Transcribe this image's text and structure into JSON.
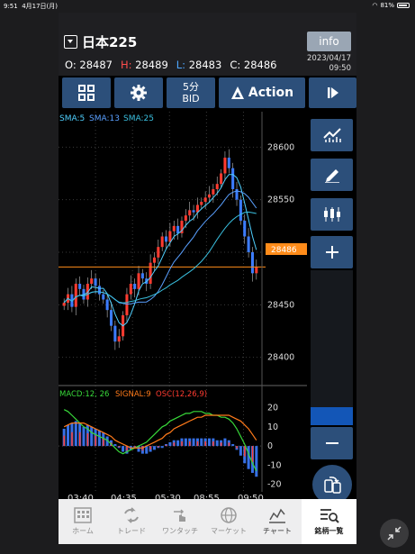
{
  "status": {
    "time": "9:51",
    "date": "4月17日(月)",
    "battery": "81%"
  },
  "header": {
    "symbol": "日本225",
    "info_label": "info",
    "ohlc": {
      "o_label": "O:",
      "o": "28487",
      "h_label": "H:",
      "h": "28489",
      "l_label": "L:",
      "l": "28483",
      "c_label": "C:",
      "c": "28486"
    },
    "date": "2023/04/17",
    "time": "09:50"
  },
  "toolbar": {
    "bid_top": "5分",
    "bid_bottom": "BID",
    "action_label": "Action"
  },
  "chart": {
    "ma_legend": {
      "sma5": "SMA:5",
      "sma13": "SMA:13",
      "sma25": "SMA:25"
    },
    "y_ticks": [
      "28600",
      "28550",
      "28500",
      "28450",
      "28400"
    ],
    "current_price": "28486",
    "macd_legend": {
      "macd": "MACD:12, 26",
      "signal": "SIGNAL:9",
      "osc": "OSC(12,26,9)"
    },
    "macd_ticks": [
      "20",
      "10",
      "0",
      "-10",
      "-20"
    ],
    "x_ticks": [
      "03:40",
      "04:35",
      "05:30",
      "08:55",
      "09:50"
    ]
  },
  "colors": {
    "up": "#ff3b30",
    "down": "#3c7cff",
    "sma5": "#4fd0ff",
    "sma13": "#5aa0ff",
    "sma25": "#3ac0e0",
    "macd": "#38d93a",
    "signal": "#ff7a1a",
    "price_line": "#ff8c1a",
    "accent": "#2c4f7a"
  },
  "chart_data": {
    "type": "candlestick",
    "price_axis": {
      "ylim": [
        28380,
        28620
      ],
      "ticks": [
        28600,
        28550,
        28500,
        28450,
        28400
      ]
    },
    "macd_axis": {
      "ylim": [
        -22,
        24
      ],
      "ticks": [
        20,
        10,
        0,
        -10,
        -20
      ]
    },
    "current": 28486,
    "close_series": [
      28452,
      28460,
      28448,
      28470,
      28465,
      28455,
      28470,
      28475,
      28468,
      28460,
      28455,
      28445,
      28430,
      28415,
      28420,
      28440,
      28460,
      28470,
      28465,
      28480,
      28475,
      28470,
      28490,
      28495,
      28505,
      28515,
      28510,
      28520,
      28525,
      28518,
      28530,
      28535,
      28540,
      28538,
      28545,
      28548,
      28552,
      28555,
      28560,
      28565,
      28575,
      28590,
      28580,
      28560,
      28550,
      28530,
      28515,
      28500,
      28480,
      28486
    ],
    "macd_hist": [
      9,
      11,
      12,
      13,
      12,
      10,
      11,
      10,
      9,
      8,
      7,
      5,
      3,
      1,
      -1,
      -3,
      -4,
      -2,
      -1,
      -3,
      -4,
      -4,
      -3,
      -2,
      -1,
      -1,
      1,
      2,
      3,
      3,
      4,
      4,
      4,
      4,
      4,
      4,
      4,
      4,
      4,
      3,
      3,
      4,
      3,
      1,
      -2,
      -5,
      -9,
      -12,
      -14,
      -16
    ],
    "macd_line": [
      19,
      18,
      16,
      14,
      12,
      10,
      9,
      7,
      6,
      5,
      4,
      3,
      1,
      -1,
      -3,
      -4,
      -3,
      -2,
      -1,
      0,
      1,
      2,
      4,
      6,
      8,
      10,
      11,
      13,
      14,
      15,
      16,
      17,
      17,
      18,
      18,
      18,
      17,
      17,
      16,
      16,
      15,
      15,
      14,
      12,
      9,
      5,
      1,
      -4,
      -9,
      -13
    ],
    "signal_line": [
      10,
      11,
      12,
      12,
      12,
      12,
      11,
      10,
      9,
      8,
      7,
      6,
      5,
      3,
      2,
      1,
      0,
      -1,
      -1,
      -1,
      -1,
      0,
      1,
      2,
      3,
      4,
      6,
      7,
      9,
      10,
      11,
      12,
      13,
      14,
      15,
      15,
      16,
      16,
      16,
      16,
      16,
      16,
      16,
      15,
      14,
      13,
      11,
      9,
      6,
      3
    ]
  }
}
